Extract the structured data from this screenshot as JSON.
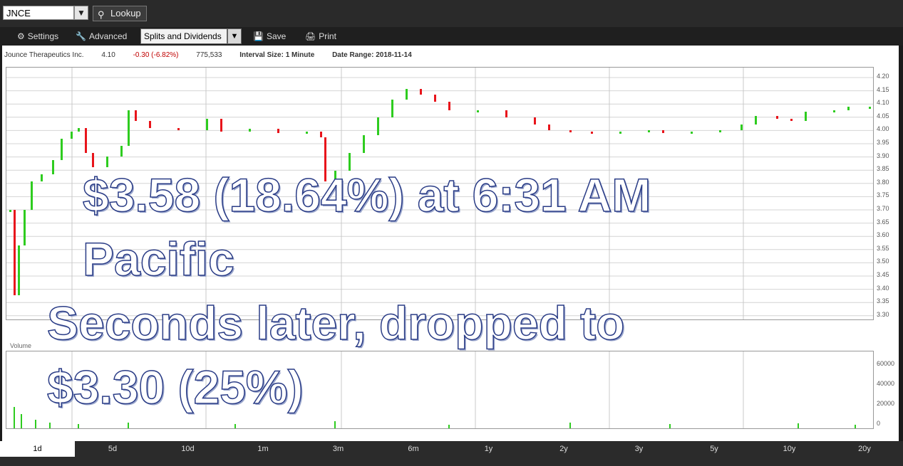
{
  "toolbar": {
    "symbol": "JNCE",
    "lookup_label": "Lookup",
    "settings_label": "Settings",
    "advanced_label": "Advanced",
    "splits_value": "Splits and Dividends",
    "save_label": "Save",
    "print_label": "Print"
  },
  "info": {
    "company": "Jounce Therapeutics Inc.",
    "price": "4.10",
    "change": "-0.30 (-6.82%)",
    "volume": "775,533",
    "interval_label": "Interval Size:",
    "interval_value": "1 Minute",
    "range_label": "Date Range:",
    "range_value": "2018-11-14"
  },
  "chart": {
    "price_ticks": [
      "4.20",
      "4.15",
      "4.10",
      "4.05",
      "4.00",
      "3.95",
      "3.90",
      "3.85",
      "3.80",
      "3.75",
      "3.70",
      "3.65",
      "3.60",
      "3.55",
      "3.50",
      "3.45",
      "3.40",
      "3.35",
      "3.30"
    ],
    "volume_label": "Volume",
    "volume_ticks": [
      "60000",
      "40000",
      "20000",
      "0"
    ],
    "colors": {
      "up": "#2ecc1f",
      "down": "#e8141b"
    }
  },
  "overlay": {
    "line1": "$3.58 (18.64%) at 6:31 AM",
    "line2": "Pacific",
    "line3": "Seconds later, dropped to",
    "line4": "$3.30 (25%)"
  },
  "tabs": [
    "1d",
    "5d",
    "10d",
    "1m",
    "3m",
    "6m",
    "1y",
    "2y",
    "3y",
    "5y",
    "10y",
    "20y"
  ],
  "active_tab": "1d"
}
